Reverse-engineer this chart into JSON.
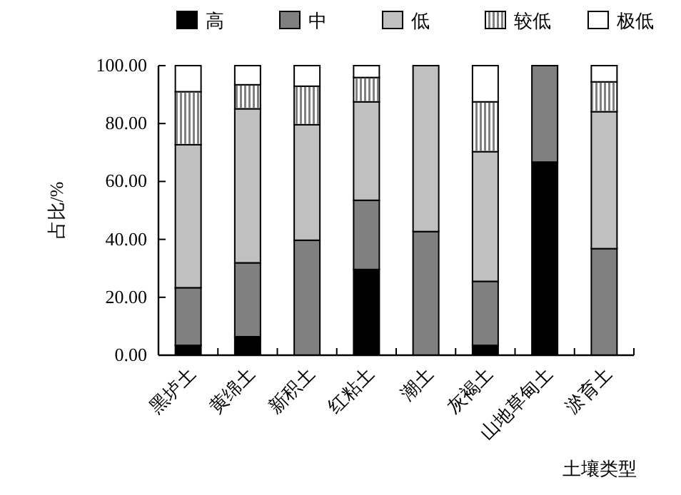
{
  "chart_data": {
    "type": "bar",
    "stacked": true,
    "xlabel": "土壤类型",
    "ylabel": "占比/%",
    "categories": [
      "黑垆土",
      "黄绵土",
      "新积土",
      "红粘土",
      "潮土",
      "灰褐土",
      "山地草甸土",
      "淤育土"
    ],
    "series": [
      {
        "name": "高",
        "color": "#000000",
        "values": [
          3.4,
          6.4,
          0,
          29.6,
          0,
          3.4,
          66.7,
          0
        ]
      },
      {
        "name": "中",
        "color": "#808080",
        "values": [
          19.9,
          25.5,
          39.7,
          23.9,
          42.7,
          22.1,
          33.3,
          36.8
        ]
      },
      {
        "name": "低",
        "color": "#c0c0c0",
        "values": [
          49.4,
          53.2,
          39.9,
          34.0,
          57.3,
          44.8,
          0,
          47.3
        ]
      },
      {
        "name": "较低",
        "color": "#ffffff",
        "values": [
          18.3,
          8.3,
          13.3,
          8.4,
          0,
          17.2,
          0,
          10.3
        ]
      },
      {
        "name": "极低",
        "color": "#ffffff",
        "values": [
          9.0,
          6.6,
          7.1,
          4.1,
          0,
          12.5,
          0,
          5.6
        ]
      }
    ],
    "ylim": [
      0,
      100
    ],
    "yticks": [
      {
        "value": 0,
        "label": "0.00"
      },
      {
        "value": 20,
        "label": "20.00"
      },
      {
        "value": 40,
        "label": "40.00"
      },
      {
        "value": 60,
        "label": "60.00"
      },
      {
        "value": 80,
        "label": "80.00"
      },
      {
        "value": 100,
        "label": "100.00"
      }
    ],
    "legend": "top",
    "grid": false
  }
}
